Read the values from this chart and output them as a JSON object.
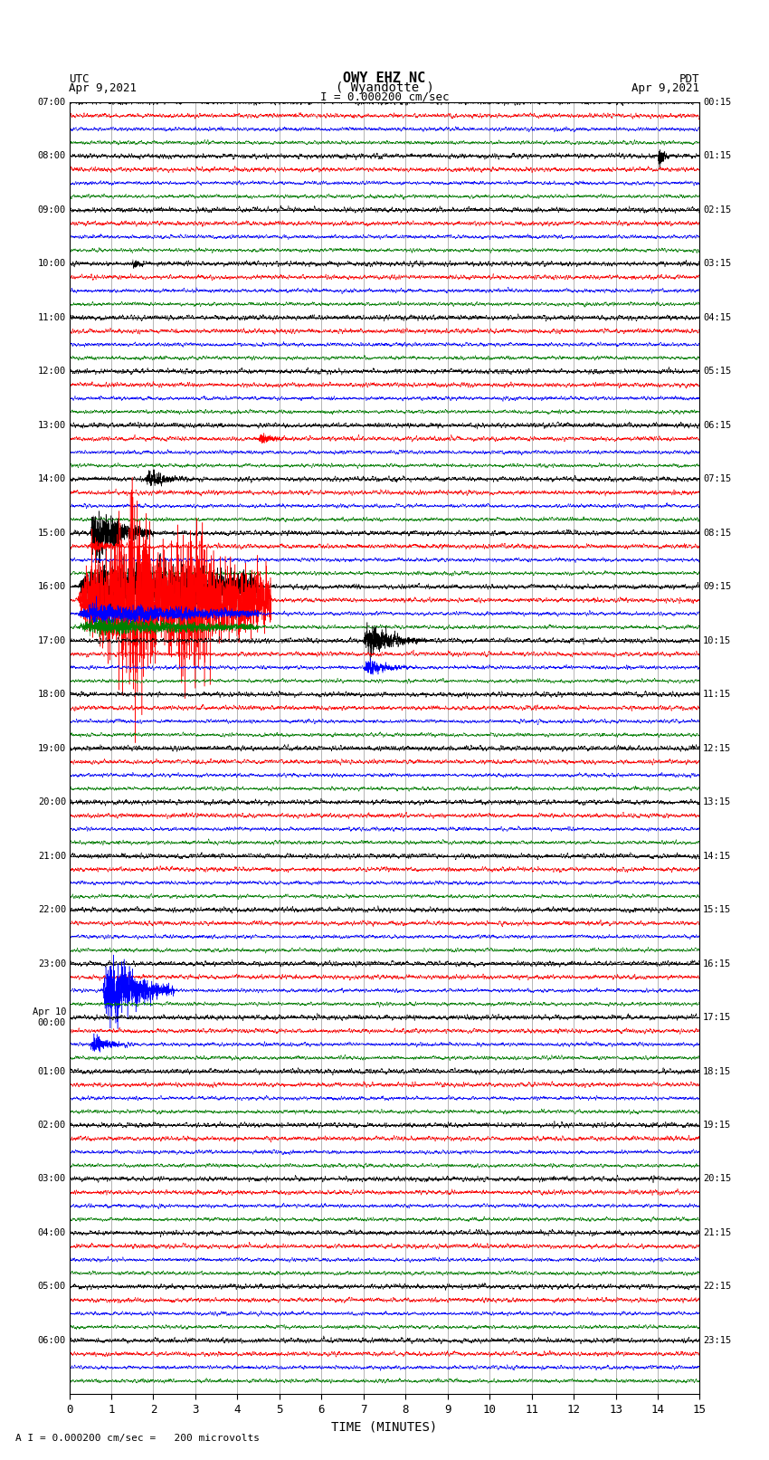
{
  "title_line1": "OWY EHZ NC",
  "title_line2": "( Wyandotte )",
  "scale_text": "I = 0.000200 cm/sec",
  "xlabel": "TIME (MINUTES)",
  "footer_text": "A I = 0.000200 cm/sec =   200 microvolts",
  "xlim": [
    0,
    15
  ],
  "xticks": [
    0,
    1,
    2,
    3,
    4,
    5,
    6,
    7,
    8,
    9,
    10,
    11,
    12,
    13,
    14,
    15
  ],
  "bg_color": "#ffffff",
  "grid_color": "#999999",
  "num_rows": 24,
  "left_times_utc": [
    "07:00",
    "08:00",
    "09:00",
    "10:00",
    "11:00",
    "12:00",
    "13:00",
    "14:00",
    "15:00",
    "16:00",
    "17:00",
    "18:00",
    "19:00",
    "20:00",
    "21:00",
    "22:00",
    "23:00",
    "Apr 10\n00:00",
    "01:00",
    "02:00",
    "03:00",
    "04:00",
    "05:00",
    "06:00"
  ],
  "right_times_pdt": [
    "00:15",
    "01:15",
    "02:15",
    "03:15",
    "04:15",
    "05:15",
    "06:15",
    "07:15",
    "08:15",
    "09:15",
    "10:15",
    "11:15",
    "12:15",
    "13:15",
    "14:15",
    "15:15",
    "16:15",
    "17:15",
    "18:15",
    "19:15",
    "20:15",
    "21:15",
    "22:15",
    "23:15"
  ],
  "seed": 42
}
